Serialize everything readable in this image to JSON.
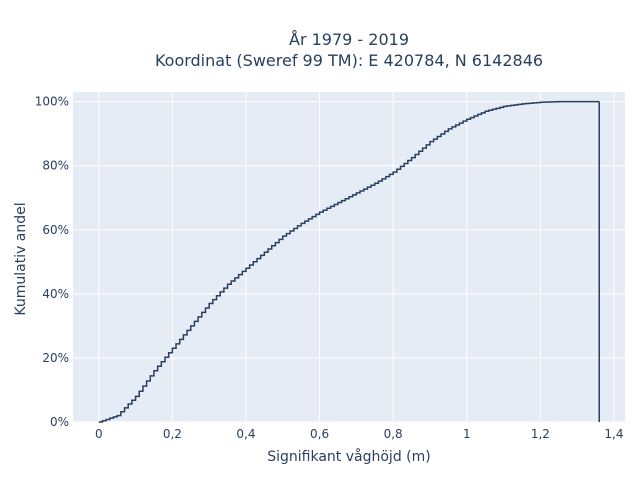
{
  "chart_data": {
    "type": "line",
    "title_lines": [
      "År 1979 - 2019",
      "Koordinat (Sweref 99 TM): E 420784, N 6142846"
    ],
    "xlabel": "Signifikant våghöjd (m)",
    "ylabel": "Kumulativ andel",
    "xlim": [
      -0.07,
      1.43
    ],
    "ylim": [
      0,
      1.03
    ],
    "x_ticks": [
      0,
      0.2,
      0.4,
      0.6,
      0.8,
      1.0,
      1.2,
      1.4
    ],
    "x_tick_labels": [
      "0",
      "0,2",
      "0,4",
      "0,6",
      "0,8",
      "1",
      "1,2",
      "1,4"
    ],
    "y_ticks": [
      0,
      0.2,
      0.4,
      0.6,
      0.8,
      1.0
    ],
    "y_tick_labels": [
      "0%",
      "20%",
      "40%",
      "60%",
      "80%",
      "100%"
    ],
    "grid": true,
    "step": true,
    "line_color": "#2a3f5f",
    "background_color": "#e5ecf6",
    "series": [
      {
        "x": [
          0,
          0.05,
          0.1,
          0.15,
          0.2,
          0.25,
          0.3,
          0.35,
          0.4,
          0.45,
          0.5,
          0.55,
          0.6,
          0.65,
          0.7,
          0.75,
          0.8,
          0.85,
          0.9,
          0.95,
          1.0,
          1.05,
          1.1,
          1.15,
          1.2,
          1.25,
          1.3,
          1.36
        ],
        "y": [
          0,
          0.02,
          0.08,
          0.16,
          0.23,
          0.3,
          0.37,
          0.43,
          0.48,
          0.53,
          0.58,
          0.62,
          0.655,
          0.685,
          0.715,
          0.745,
          0.78,
          0.825,
          0.875,
          0.915,
          0.945,
          0.97,
          0.985,
          0.993,
          0.998,
          1.0,
          1.0,
          1.0
        ]
      }
    ]
  }
}
